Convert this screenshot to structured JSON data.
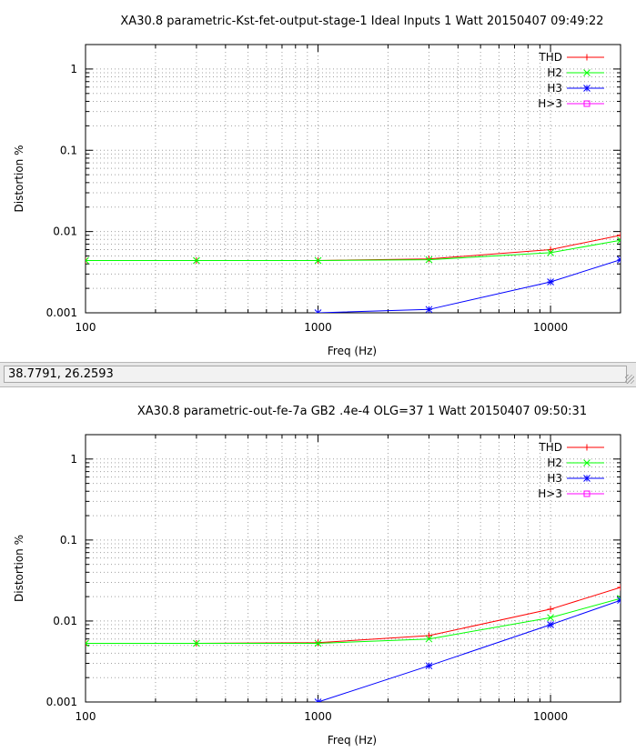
{
  "status_bar": {
    "coordinates": "38.7791,  26.2593"
  },
  "colors": {
    "THD": "#ff0000",
    "H2": "#00ff00",
    "H3": "#0000ff",
    "H>3": "#ff00ff"
  },
  "chart_data": [
    {
      "type": "line",
      "title": "XA30.8 parametric-Kst-fet-output-stage-1 Ideal Inputs 1 Watt 20150407 09:49:22",
      "xlabel": "Freq (Hz)",
      "ylabel": "Distortion %",
      "xscale": "log",
      "yscale": "log",
      "xlim": [
        100,
        20000
      ],
      "ylim": [
        0.001,
        2
      ],
      "xticks": [
        100,
        1000,
        10000
      ],
      "xtick_labels": [
        "100",
        "1000",
        "10000"
      ],
      "yticks": [
        0.001,
        0.01,
        0.1,
        1
      ],
      "ytick_labels": [
        "0.001",
        "0.01",
        "0.1",
        "1"
      ],
      "grid": true,
      "legend_position": "top-right",
      "series": [
        {
          "name": "THD",
          "marker": "plus",
          "x": [
            100,
            300,
            1000,
            3000,
            10000,
            20000
          ],
          "y": [
            0.0044,
            0.0044,
            0.0044,
            0.0046,
            0.006,
            0.009
          ]
        },
        {
          "name": "H2",
          "marker": "cross",
          "x": [
            100,
            300,
            1000,
            3000,
            10000,
            20000
          ],
          "y": [
            0.0044,
            0.0044,
            0.0044,
            0.0045,
            0.0055,
            0.0078
          ]
        },
        {
          "name": "H3",
          "marker": "star",
          "x": [
            1000,
            3000,
            10000,
            20000
          ],
          "y": [
            0.001,
            0.0011,
            0.0024,
            0.0045
          ]
        },
        {
          "name": "H>3",
          "marker": "square",
          "x": [],
          "y": []
        }
      ]
    },
    {
      "type": "line",
      "title": "XA30.8 parametric-out-fe-7a GB2 .4e-4 OLG=37 1 Watt 20150407 09:50:31",
      "xlabel": "Freq (Hz)",
      "ylabel": "Distortion %",
      "xscale": "log",
      "yscale": "log",
      "xlim": [
        100,
        20000
      ],
      "ylim": [
        0.001,
        2
      ],
      "xticks": [
        100,
        1000,
        10000
      ],
      "xtick_labels": [
        "100",
        "1000",
        "10000"
      ],
      "yticks": [
        0.001,
        0.01,
        0.1,
        1
      ],
      "ytick_labels": [
        "0.001",
        "0.01",
        "0.1",
        "1"
      ],
      "grid": true,
      "legend_position": "top-right",
      "series": [
        {
          "name": "THD",
          "marker": "plus",
          "x": [
            100,
            300,
            1000,
            3000,
            10000,
            20000
          ],
          "y": [
            0.0053,
            0.0053,
            0.0054,
            0.0066,
            0.014,
            0.026
          ]
        },
        {
          "name": "H2",
          "marker": "cross",
          "x": [
            100,
            300,
            1000,
            3000,
            10000,
            20000
          ],
          "y": [
            0.0053,
            0.0053,
            0.0053,
            0.006,
            0.011,
            0.019
          ]
        },
        {
          "name": "H3",
          "marker": "star",
          "x": [
            1000,
            3000,
            10000,
            20000
          ],
          "y": [
            0.001,
            0.0028,
            0.009,
            0.018
          ]
        },
        {
          "name": "H>3",
          "marker": "square",
          "x": [],
          "y": []
        }
      ]
    }
  ]
}
